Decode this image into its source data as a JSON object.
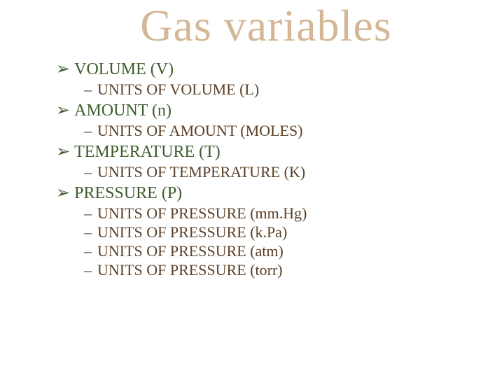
{
  "title": "Gas variables",
  "title_color": "#d4b896",
  "level1_color": "#3d5c2e",
  "level2_color": "#5b4028",
  "arrow_bullet": "➢",
  "dash_bullet": "–",
  "items": [
    {
      "label": "VOLUME (V)",
      "subs": [
        {
          "label": " UNITS OF VOLUME (L)",
          "spaced": true
        }
      ]
    },
    {
      "label": "AMOUNT (n)",
      "subs": [
        {
          "label": " UNITS OF AMOUNT (MOLES)",
          "spaced": true
        }
      ]
    },
    {
      "label": "TEMPERATURE (T)",
      "subs": [
        {
          "label": " UNITS OF TEMPERATURE (K)",
          "spaced": true
        }
      ]
    },
    {
      "label": "PRESSURE (P)",
      "subs": [
        {
          "label": "UNITS OF PRESSURE (mm.Hg)",
          "spaced": false
        },
        {
          "label": "UNITS OF PRESSURE (k.Pa)",
          "spaced": false
        },
        {
          "label": "UNITS OF PRESSURE (atm)",
          "spaced": false
        },
        {
          "label": "UNITS OF PRESSURE (torr)",
          "spaced": false
        }
      ]
    }
  ]
}
